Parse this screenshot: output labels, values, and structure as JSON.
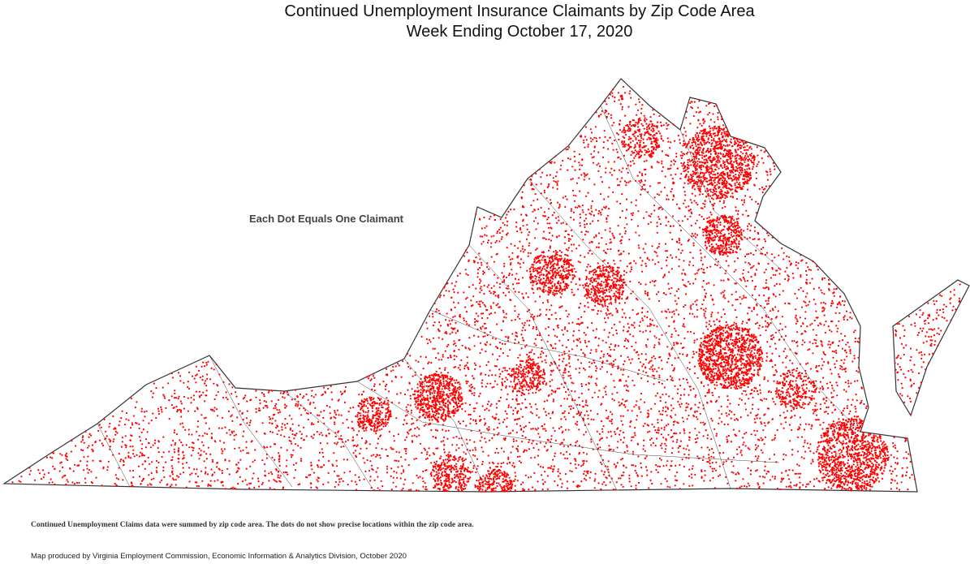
{
  "header": {
    "title": "Continued Unemployment Insurance Claimants by Zip Code Area",
    "subtitle": "Week Ending October 17, 2020"
  },
  "map": {
    "legend_note": "Each Dot Equals One Claimant"
  },
  "footer": {
    "note": "Continued Unemployment Claims data were summed by zip code area. The dots do not show precise locations within the zip code area.",
    "credit": "Map produced by Virginia Employment Commission, Economic Information & Analytics Division,  October 2020"
  }
}
